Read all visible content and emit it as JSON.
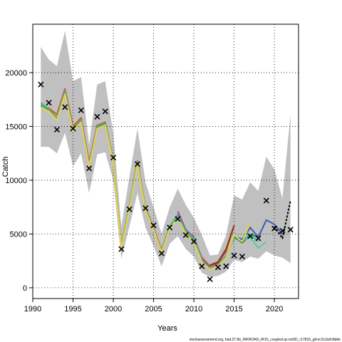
{
  "chart_data": {
    "type": "line",
    "xlabel": "Years",
    "ylabel": "Catch",
    "caption": "stockassessment.org, had.27.6b_WKROAD_IR15_coupled.qs.noDD_r17815_git:ec2c2a0c8dde",
    "xlim": [
      1990,
      2023
    ],
    "ylim": [
      -1000,
      24500
    ],
    "x_ticks": [
      1990,
      1995,
      2000,
      2005,
      2010,
      2015,
      2020
    ],
    "y_ticks": [
      0,
      5000,
      10000,
      15000,
      20000
    ],
    "grid": true,
    "colors": {
      "band": "#c0c0c0",
      "observed": "#000000",
      "r_red": "#e8463c",
      "r_green": "#4ab04a",
      "r_yellow": "#e6d24a",
      "r_blue": "#3c5ab4",
      "r_magenta": "#c83296",
      "r_teal": "#3cb4a0",
      "r_brown": "#8b3a12",
      "r_darkgreen": "#2a7a2a",
      "r_lightgreen": "#5ac8a0",
      "r_black": "#000000"
    },
    "observed": {
      "x": [
        1991,
        1992,
        1993,
        1994,
        1995,
        1996,
        1997,
        1998,
        1999,
        2000,
        2001,
        2002,
        2003,
        2004,
        2005,
        2006,
        2007,
        2008,
        2009,
        2010,
        2011,
        2012,
        2013,
        2014,
        2015,
        2016,
        2017,
        2018,
        2019,
        2020,
        2021,
        2022
      ],
      "y": [
        18900,
        17200,
        14700,
        16800,
        14800,
        16500,
        11100,
        15900,
        16400,
        12100,
        3600,
        7300,
        11500,
        7400,
        5800,
        3200,
        5600,
        6400,
        4900,
        4300,
        2000,
        800,
        1900,
        2000,
        3000,
        2900,
        4800,
        4600,
        8100,
        5500,
        5300,
        5400
      ]
    },
    "band": {
      "x": [
        1991,
        1992,
        1993,
        1994,
        1995,
        1996,
        1997,
        1998,
        1999,
        2000,
        2001,
        2002,
        2003,
        2004,
        2005,
        2006,
        2007,
        2008,
        2009,
        2010,
        2011,
        2012,
        2013,
        2014,
        2015,
        2016,
        2017,
        2018,
        2019,
        2020,
        2021,
        2022
      ],
      "upper": [
        22400,
        21200,
        20600,
        23900,
        19200,
        19600,
        13300,
        18900,
        19200,
        14300,
        5700,
        10300,
        14800,
        9800,
        7500,
        5000,
        7500,
        9200,
        7700,
        6500,
        4900,
        3000,
        3100,
        4900,
        8600,
        8200,
        9800,
        9000,
        12200,
        11000,
        8300,
        16100
      ],
      "lower": [
        13100,
        13100,
        12500,
        14400,
        11300,
        12500,
        8800,
        12400,
        12600,
        10000,
        2700,
        5700,
        8800,
        5600,
        3900,
        2000,
        4100,
        4800,
        3600,
        2900,
        1400,
        1000,
        1100,
        1500,
        2600,
        2400,
        2900,
        2700,
        3400,
        3000,
        2800,
        2300
      ]
    },
    "series": [
      {
        "color": "r_red",
        "x": [
          1991,
          1992,
          1993,
          1994,
          1995,
          1996,
          1997,
          1998,
          1999,
          2000,
          2001,
          2002,
          2003,
          2004,
          2005,
          2006,
          2007,
          2008,
          2009,
          2010,
          2011,
          2012,
          2013,
          2014,
          2015
        ],
        "y": [
          16900,
          16700,
          16100,
          18500,
          15000,
          15800,
          11700,
          15100,
          15400,
          11900,
          3900,
          7600,
          11800,
          7400,
          5600,
          3500,
          5700,
          6700,
          5200,
          4500,
          2800,
          2000,
          2300,
          3400,
          5800
        ]
      },
      {
        "color": "r_magenta",
        "x": [
          2008,
          2009,
          2010,
          2011,
          2012,
          2013,
          2014
        ],
        "y": [
          7100,
          5400,
          4700,
          2700,
          2000,
          2300,
          3400
        ]
      },
      {
        "color": "r_brown",
        "x": [
          2012,
          2013,
          2014,
          2015
        ],
        "y": [
          2100,
          2400,
          3600,
          5800
        ]
      },
      {
        "color": "r_darkgreen",
        "x": [
          2015,
          2016,
          2017,
          2018
        ],
        "y": [
          4700,
          4200,
          4900,
          4800
        ]
      },
      {
        "color": "r_lightgreen",
        "x": [
          2016,
          2017,
          2018,
          2019
        ],
        "y": [
          4400,
          4700,
          3700,
          4300
        ]
      },
      {
        "color": "r_teal",
        "x": [
          1991,
          1992,
          1993,
          1994,
          1995,
          1996,
          1997,
          1998,
          1999,
          2000,
          2001,
          2002,
          2003,
          2004,
          2005,
          2006,
          2007,
          2008,
          2009,
          2010,
          2011,
          2012,
          2013,
          2014,
          2015,
          2016,
          2017,
          2018
        ],
        "y": [
          17200,
          16600,
          15800,
          18300,
          14800,
          15600,
          11500,
          15000,
          15300,
          11800,
          3800,
          7600,
          11700,
          7300,
          5500,
          3400,
          5700,
          6800,
          5300,
          4600,
          2600,
          1800,
          2100,
          3000,
          4600,
          4300,
          5000,
          4300
        ]
      },
      {
        "color": "r_green",
        "x": [
          1991,
          1992,
          1993,
          1994,
          1995,
          1996,
          1997,
          1998,
          1999,
          2000,
          2001,
          2002,
          2003,
          2004,
          2005,
          2006,
          2007,
          2008,
          2009,
          2010,
          2011,
          2012,
          2013,
          2014,
          2015,
          2016,
          2017
        ],
        "y": [
          17000,
          16500,
          15700,
          18100,
          14700,
          15500,
          11400,
          14900,
          15200,
          11800,
          3800,
          7500,
          11600,
          7300,
          5500,
          3300,
          5600,
          6600,
          5100,
          4400,
          2500,
          1800,
          2100,
          2900,
          4800,
          4400,
          5900
        ]
      },
      {
        "color": "r_blue",
        "x": [
          2015,
          2016,
          2017,
          2018,
          2019,
          2020,
          2021
        ],
        "y": [
          4800,
          4500,
          5600,
          4700,
          6300,
          5900,
          5000
        ]
      },
      {
        "color": "r_black",
        "x": [
          2020,
          2021,
          2022
        ],
        "y": [
          5700,
          4600,
          8100
        ]
      },
      {
        "color": "r_yellow",
        "x": [
          1991,
          1992,
          1993,
          1994,
          1995,
          1996,
          1997,
          1998,
          1999,
          2000,
          2001,
          2002,
          2003,
          2004,
          2005,
          2006,
          2007,
          2008,
          2009,
          2010,
          2011,
          2012,
          2013,
          2014,
          2015,
          2016,
          2017
        ],
        "y": [
          16700,
          16400,
          15600,
          18000,
          14600,
          15400,
          11300,
          14800,
          15100,
          11700,
          3700,
          7400,
          11500,
          7200,
          5400,
          3300,
          5500,
          6500,
          5000,
          4300,
          2400,
          1700,
          2000,
          2800,
          4900,
          4300,
          6000
        ]
      }
    ]
  }
}
